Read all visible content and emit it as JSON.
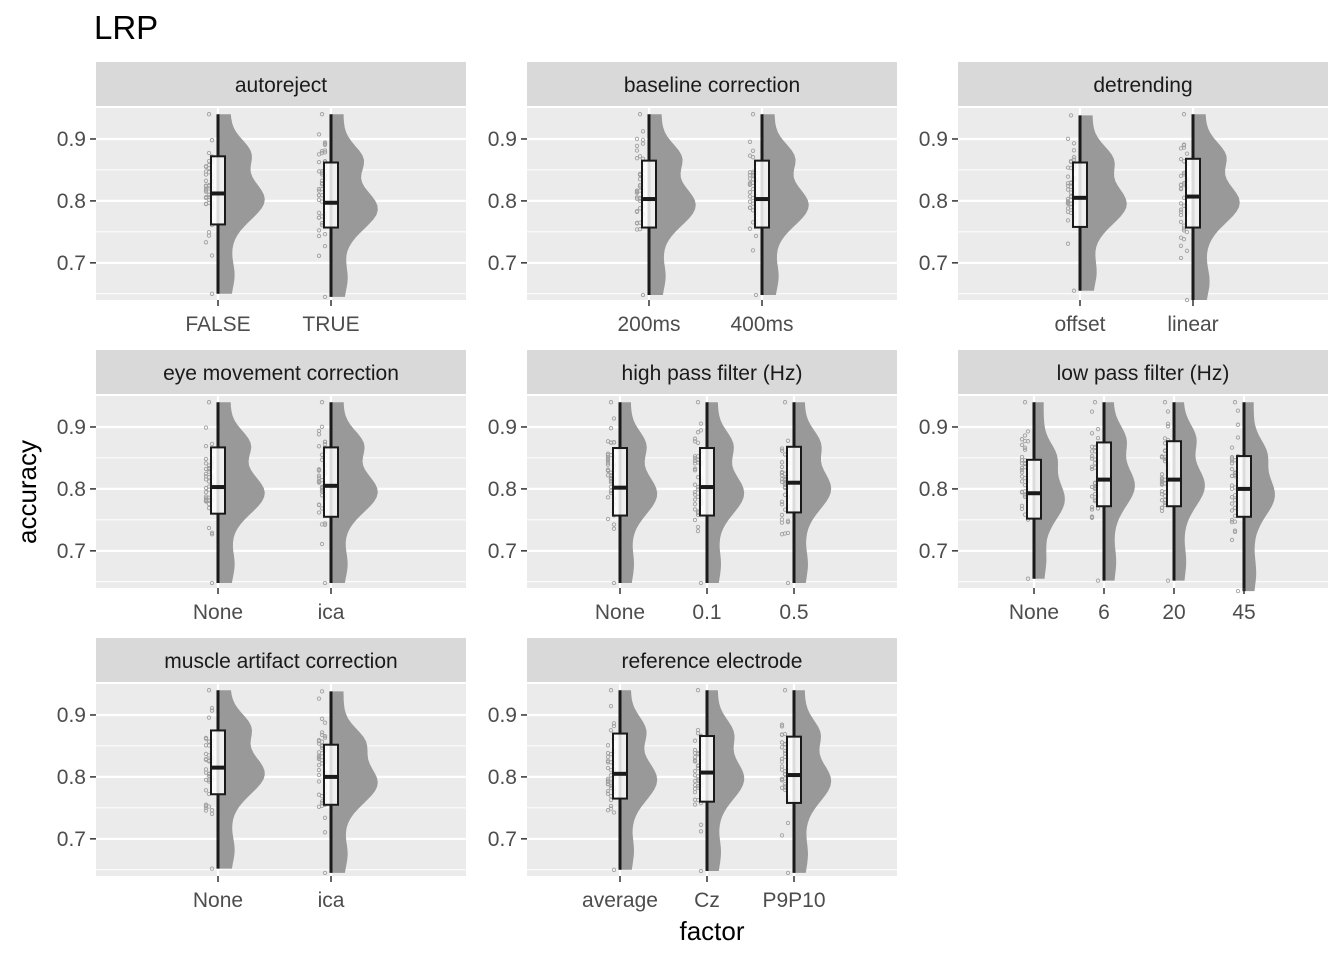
{
  "chart_data": {
    "type": "raincloud",
    "title": "LRP",
    "xlabel": "factor",
    "ylabel": "accuracy",
    "ylim": [
      0.64,
      0.95
    ],
    "yticks": [
      0.7,
      0.8,
      0.9
    ],
    "grid": true,
    "colors": {
      "panel_bg": "#ebebeb",
      "strip_bg": "#d9d9d9",
      "grid": "#ffffff",
      "density": "#999999",
      "box_fill": "#ffffff",
      "box_stroke": "#1a1a1a",
      "points": "#a0a0a0"
    },
    "panels": [
      {
        "title": "autoreject",
        "categories": [
          {
            "label": "FALSE",
            "min": 0.65,
            "q1": 0.762,
            "median": 0.812,
            "q3": 0.872,
            "max": 0.94
          },
          {
            "label": "TRUE",
            "min": 0.645,
            "q1": 0.757,
            "median": 0.797,
            "q3": 0.862,
            "max": 0.94
          }
        ]
      },
      {
        "title": "baseline correction",
        "categories": [
          {
            "label": "200ms",
            "min": 0.648,
            "q1": 0.757,
            "median": 0.803,
            "q3": 0.865,
            "max": 0.94
          },
          {
            "label": "400ms",
            "min": 0.648,
            "q1": 0.757,
            "median": 0.803,
            "q3": 0.865,
            "max": 0.94
          }
        ]
      },
      {
        "title": "detrending",
        "categories": [
          {
            "label": "offset",
            "min": 0.655,
            "q1": 0.758,
            "median": 0.805,
            "q3": 0.862,
            "max": 0.938
          },
          {
            "label": "linear",
            "min": 0.64,
            "q1": 0.757,
            "median": 0.807,
            "q3": 0.868,
            "max": 0.94
          }
        ]
      },
      {
        "title": "eye movement correction",
        "categories": [
          {
            "label": "None",
            "min": 0.648,
            "q1": 0.76,
            "median": 0.803,
            "q3": 0.867,
            "max": 0.94
          },
          {
            "label": "ica",
            "min": 0.648,
            "q1": 0.755,
            "median": 0.805,
            "q3": 0.867,
            "max": 0.94
          }
        ]
      },
      {
        "title": "high pass filter (Hz)",
        "categories": [
          {
            "label": "None",
            "min": 0.648,
            "q1": 0.757,
            "median": 0.802,
            "q3": 0.866,
            "max": 0.94
          },
          {
            "label": "0.1",
            "min": 0.648,
            "q1": 0.757,
            "median": 0.803,
            "q3": 0.866,
            "max": 0.94
          },
          {
            "label": "0.5",
            "min": 0.648,
            "q1": 0.762,
            "median": 0.81,
            "q3": 0.868,
            "max": 0.94
          }
        ]
      },
      {
        "title": "low pass filter (Hz)",
        "categories": [
          {
            "label": "None",
            "min": 0.655,
            "q1": 0.752,
            "median": 0.793,
            "q3": 0.847,
            "max": 0.94
          },
          {
            "label": "6",
            "min": 0.652,
            "q1": 0.772,
            "median": 0.815,
            "q3": 0.875,
            "max": 0.94
          },
          {
            "label": "20",
            "min": 0.652,
            "q1": 0.772,
            "median": 0.815,
            "q3": 0.877,
            "max": 0.94
          },
          {
            "label": "45",
            "min": 0.635,
            "q1": 0.755,
            "median": 0.8,
            "q3": 0.853,
            "max": 0.94
          }
        ]
      },
      {
        "title": "muscle artifact correction",
        "categories": [
          {
            "label": "None",
            "min": 0.652,
            "q1": 0.772,
            "median": 0.815,
            "q3": 0.875,
            "max": 0.94
          },
          {
            "label": "ica",
            "min": 0.645,
            "q1": 0.755,
            "median": 0.8,
            "q3": 0.852,
            "max": 0.938
          }
        ]
      },
      {
        "title": "reference electrode",
        "categories": [
          {
            "label": "average",
            "min": 0.65,
            "q1": 0.765,
            "median": 0.805,
            "q3": 0.87,
            "max": 0.94
          },
          {
            "label": "Cz",
            "min": 0.648,
            "q1": 0.76,
            "median": 0.807,
            "q3": 0.866,
            "max": 0.94
          },
          {
            "label": "P9P10",
            "min": 0.645,
            "q1": 0.758,
            "median": 0.803,
            "q3": 0.865,
            "max": 0.94
          }
        ]
      }
    ]
  }
}
